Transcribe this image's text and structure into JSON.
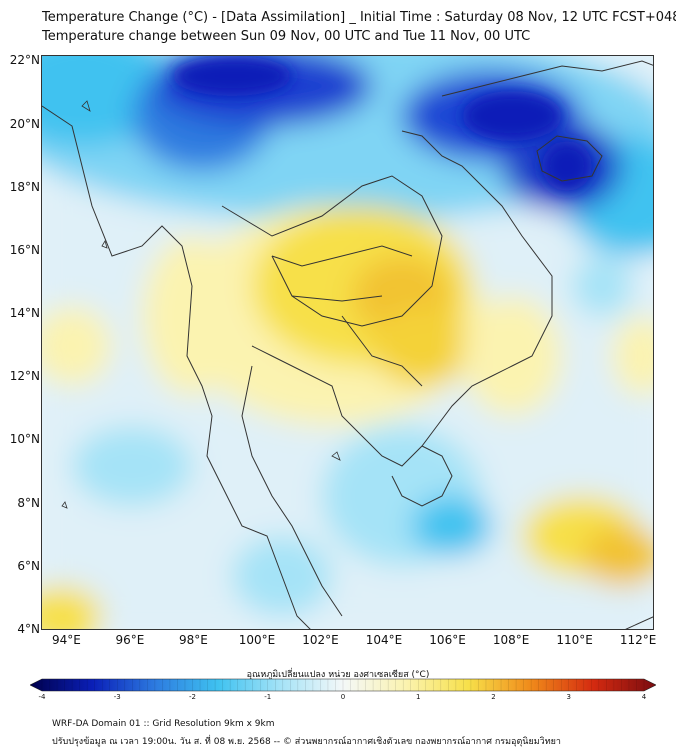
{
  "header": {
    "title_line1": "Temperature Change (°C) - [Data Assimilation] _ Initial Time : Saturday 08 Nov, 12 UTC FCST+048",
    "title_line2": "Temperature change between Sun 09 Nov, 00 UTC and Tue 11 Nov, 00 UTC"
  },
  "map": {
    "lat_ticks": [
      "22°N",
      "20°N",
      "18°N",
      "16°N",
      "14°N",
      "12°N",
      "10°N",
      "8°N",
      "6°N",
      "4°N"
    ],
    "lon_ticks": [
      "94°E",
      "96°E",
      "98°E",
      "100°E",
      "102°E",
      "104°E",
      "106°E",
      "108°E",
      "110°E",
      "112°E"
    ],
    "lat_range": [
      4,
      22.2
    ],
    "lon_range": [
      93.2,
      112.5
    ],
    "field_colors": {
      "deep_blue": "#0a1fb8",
      "blue": "#2d7be0",
      "cyan": "#3fc2f0",
      "light_cyan": "#a5e3f7",
      "pale": "#e4f2fa",
      "pale_yellow": "#fbf3b0",
      "yellow": "#f7e04a",
      "orange_yellow": "#f2c230"
    },
    "coastline_color": "#333333"
  },
  "colorbar": {
    "label": "อุณหภูมิเปลี่ยนแปลง หน่วย องศาเซลเซียส (°C)",
    "ticks": [
      "-4",
      "-3",
      "-2",
      "-1",
      "0",
      "1",
      "2",
      "3",
      "4"
    ],
    "range": [
      -4,
      4
    ],
    "colors": [
      "#00004c",
      "#0a1fb8",
      "#2d7be0",
      "#3fc2f0",
      "#a5e3f7",
      "#f4f8f8",
      "#fbf3b0",
      "#f7e04a",
      "#f08a1a",
      "#d42a10",
      "#7a0c10"
    ]
  },
  "footer": {
    "line1": "WRF-DA Domain 01 :: Grid Resolution 9km x 9km",
    "line2": "ปรับปรุงข้อมูล ณ เวลา 19:00น. วัน ส. ที่ 08 พ.ย. 2568 -- © ส่วนพยากรณ์อากาศเชิงตัวเลข กองพยากรณ์อากาศ กรมอุตุนิยมวิทยา"
  }
}
